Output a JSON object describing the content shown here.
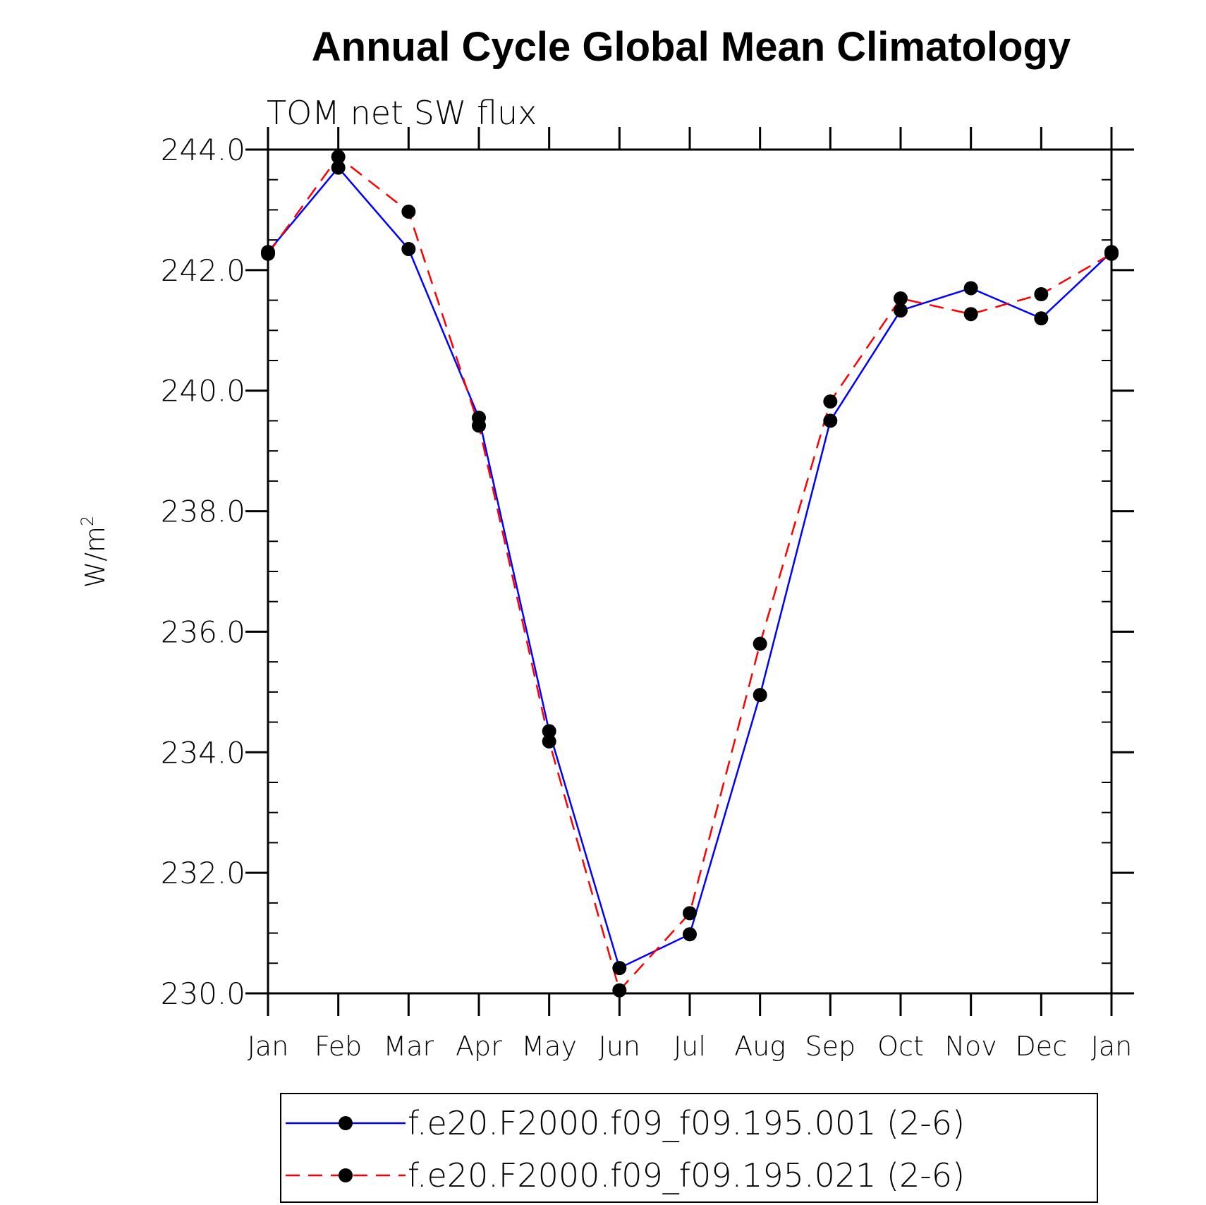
{
  "chart_data": {
    "type": "line",
    "title": "Annual Cycle Global Mean Climatology",
    "subtitle": "TOM net SW flux",
    "ylabel": "W/m",
    "ylabel_superscript": "2",
    "xlabel": "",
    "categories": [
      "Jan",
      "Feb",
      "Mar",
      "Apr",
      "May",
      "Jun",
      "Jul",
      "Aug",
      "Sep",
      "Oct",
      "Nov",
      "Dec",
      "Jan"
    ],
    "ylim": [
      230.0,
      244.0
    ],
    "yticks": [
      "230.0",
      "232.0",
      "234.0",
      "236.0",
      "238.0",
      "240.0",
      "242.0",
      "244.0"
    ],
    "series": [
      {
        "name": "f.e20.F2000.f09_f09.195.001 (2-6)",
        "color": "#0000ff",
        "style": "solid",
        "values": [
          242.3,
          243.7,
          242.35,
          239.55,
          234.35,
          230.42,
          230.98,
          234.95,
          239.5,
          241.33,
          241.7,
          241.2,
          242.3
        ]
      },
      {
        "name": "f.e20.F2000.f09_f09.195.021 (2-6)",
        "color": "#ff0000",
        "style": "dashed",
        "values": [
          242.27,
          243.88,
          242.97,
          239.42,
          234.18,
          230.05,
          231.33,
          235.8,
          239.82,
          241.53,
          241.27,
          241.6,
          242.27
        ]
      }
    ],
    "legend_position": "bottom-center"
  }
}
